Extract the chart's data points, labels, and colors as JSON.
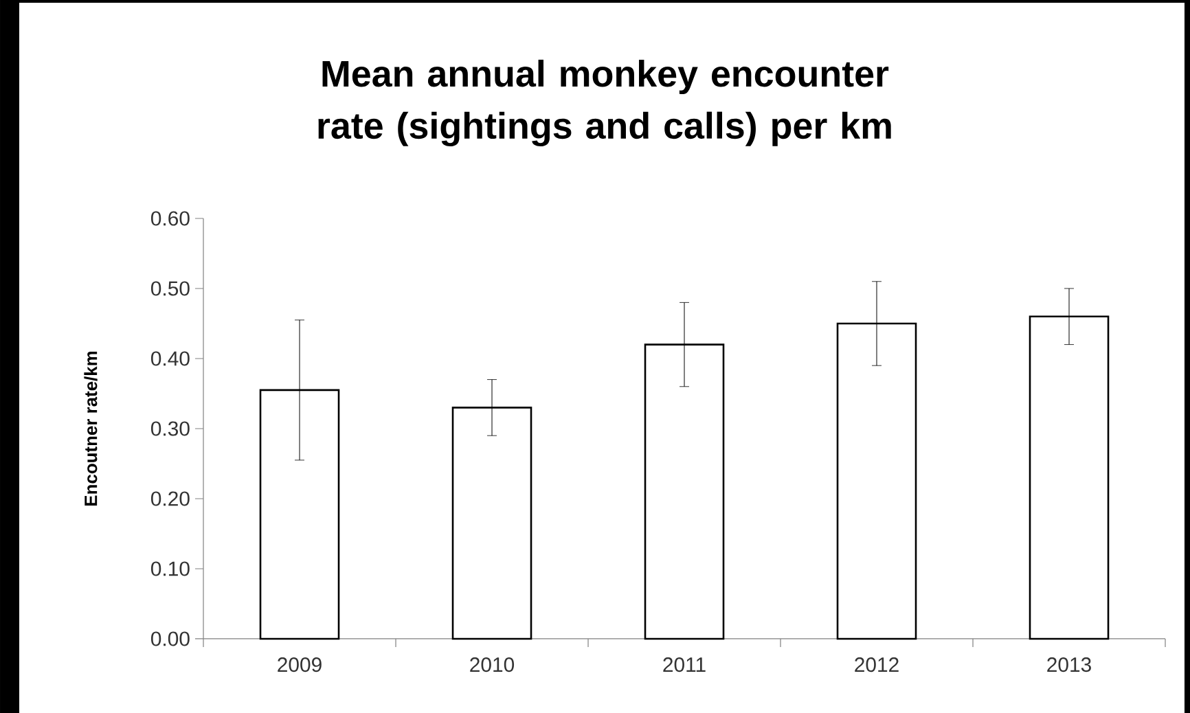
{
  "chart_data": {
    "type": "bar",
    "title": "Mean annual monkey encounter rate (sightings and calls) per km",
    "ylabel": "Encoutner rate/km",
    "categories": [
      "2009",
      "2010",
      "2011",
      "2012",
      "2013"
    ],
    "values": [
      0.355,
      0.33,
      0.42,
      0.45,
      0.46
    ],
    "errors": [
      0.1,
      0.04,
      0.06,
      0.06,
      0.04
    ],
    "color": "#ffffff",
    "ylim": [
      0,
      0.6
    ],
    "yticks": [
      {
        "value": 0,
        "label": "0.00"
      },
      {
        "value": 0.1,
        "label": "0.10"
      },
      {
        "value": 0.2,
        "label": "0.20"
      },
      {
        "value": 0.3,
        "label": "0.30"
      },
      {
        "value": 0.4,
        "label": "0.40"
      },
      {
        "value": 0.5,
        "label": "0.50"
      },
      {
        "value": 0.6,
        "label": "0.60"
      }
    ]
  }
}
